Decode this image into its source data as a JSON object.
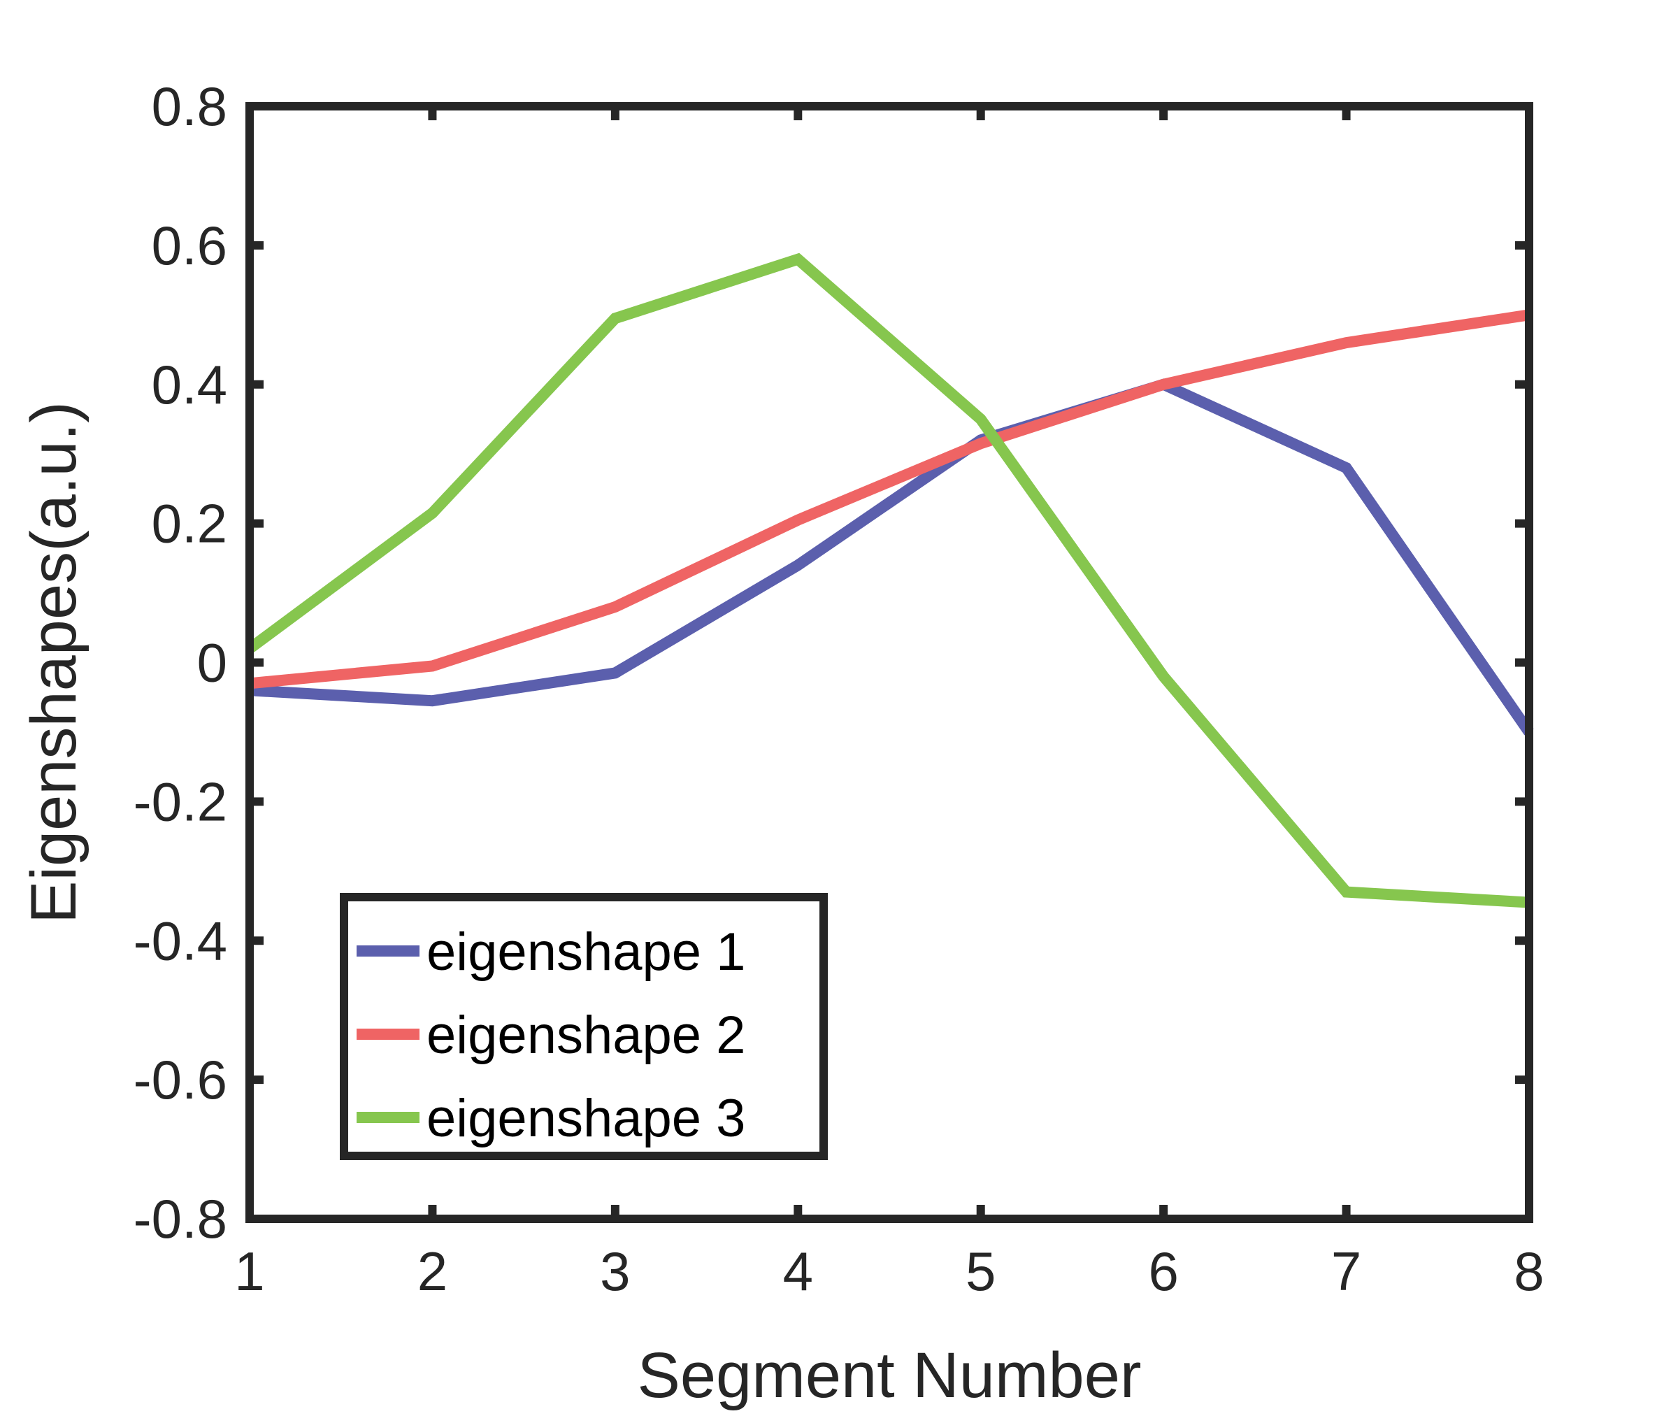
{
  "chart_data": {
    "type": "line",
    "xlabel": "Segment Number",
    "ylabel": "Eigenshapes(a.u.)",
    "x": [
      1,
      2,
      3,
      4,
      5,
      6,
      7,
      8
    ],
    "xlim": [
      1,
      8
    ],
    "ylim": [
      -0.8,
      0.8
    ],
    "xticks": [
      "1",
      "2",
      "3",
      "4",
      "5",
      "6",
      "7",
      "8"
    ],
    "yticks": [
      "0.8",
      "0.6",
      "0.4",
      "0.2",
      "0",
      "-0.2",
      "-0.4",
      "-0.6",
      "-0.8"
    ],
    "ytick_values": [
      0.8,
      0.6,
      0.4,
      0.2,
      0,
      -0.2,
      -0.4,
      -0.6,
      -0.8
    ],
    "grid": false,
    "legend_position": "bottom-left",
    "series": [
      {
        "name": "eigenshape 1",
        "color": "#5b5fad",
        "values": [
          -0.04,
          -0.055,
          -0.015,
          0.14,
          0.32,
          0.4,
          0.28,
          -0.1
        ]
      },
      {
        "name": "eigenshape 2",
        "color": "#ef6464",
        "values": [
          -0.03,
          -0.005,
          0.08,
          0.205,
          0.315,
          0.4,
          0.46,
          0.5
        ]
      },
      {
        "name": "eigenshape 3",
        "color": "#86c64e",
        "values": [
          0.02,
          0.215,
          0.495,
          0.58,
          0.35,
          -0.02,
          -0.33,
          -0.345
        ]
      }
    ]
  }
}
